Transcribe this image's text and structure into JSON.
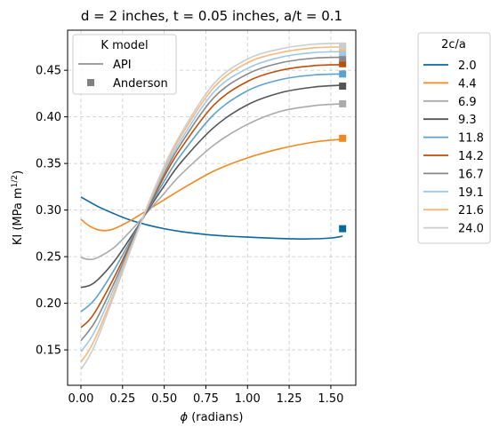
{
  "chart_data": {
    "type": "line",
    "title": "d = 2 inches, t = 0.05 inches, a/t = 0.1",
    "xlabel_symbol": "ϕ",
    "xlabel_rest": " (radians)",
    "ylabel_main": "KI (MPa m",
    "ylabel_sup": "1/2",
    "ylabel_close": ")",
    "xlim": [
      -0.08,
      1.65
    ],
    "ylim": [
      0.112,
      0.493
    ],
    "xticks": [
      0.0,
      0.25,
      0.5,
      0.75,
      1.0,
      1.25,
      1.5
    ],
    "xtick_labels": [
      "0.00",
      "0.25",
      "0.50",
      "0.75",
      "1.00",
      "1.25",
      "1.50"
    ],
    "yticks": [
      0.15,
      0.2,
      0.25,
      0.3,
      0.35,
      0.4,
      0.45
    ],
    "ytick_labels": [
      "0.15",
      "0.20",
      "0.25",
      "0.30",
      "0.35",
      "0.40",
      "0.45"
    ],
    "grid": true,
    "model_legend": {
      "title": "K model",
      "placement": "upper-left",
      "items": [
        {
          "label": "API",
          "marker": "line",
          "color": "#808080"
        },
        {
          "label": "Anderson",
          "marker": "square",
          "color": "#808080"
        }
      ]
    },
    "series_legend": {
      "title": "2c/a",
      "placement": "outside-right"
    },
    "anderson_x": 1.5708,
    "series": [
      {
        "name": "2.0",
        "color": "#0868a0",
        "x": [
          0.0,
          0.1,
          0.2,
          0.3,
          0.4,
          0.5,
          0.6,
          0.8,
          1.0,
          1.2,
          1.35,
          1.5,
          1.5708
        ],
        "y": [
          0.314,
          0.304,
          0.296,
          0.289,
          0.284,
          0.28,
          0.277,
          0.273,
          0.271,
          0.2695,
          0.269,
          0.27,
          0.272
        ],
        "anderson": 0.28
      },
      {
        "name": "4.4",
        "color": "#f08a20",
        "x": [
          0.0,
          0.05,
          0.1,
          0.15,
          0.2,
          0.3,
          0.4,
          0.5,
          0.6,
          0.8,
          1.0,
          1.2,
          1.4,
          1.5708
        ],
        "y": [
          0.29,
          0.283,
          0.279,
          0.278,
          0.28,
          0.289,
          0.3,
          0.311,
          0.322,
          0.342,
          0.356,
          0.366,
          0.373,
          0.376
        ],
        "anderson": 0.377
      },
      {
        "name": "6.9",
        "color": "#aaaaaa",
        "x": [
          0.0,
          0.05,
          0.1,
          0.2,
          0.3,
          0.4,
          0.5,
          0.6,
          0.8,
          1.0,
          1.2,
          1.4,
          1.5708
        ],
        "y": [
          0.249,
          0.247,
          0.249,
          0.26,
          0.278,
          0.298,
          0.318,
          0.338,
          0.37,
          0.392,
          0.406,
          0.412,
          0.414
        ],
        "anderson": 0.414
      },
      {
        "name": "9.3",
        "color": "#555555",
        "x": [
          0.0,
          0.05,
          0.1,
          0.2,
          0.3,
          0.4,
          0.5,
          0.6,
          0.8,
          1.0,
          1.2,
          1.4,
          1.5708
        ],
        "y": [
          0.217,
          0.219,
          0.225,
          0.245,
          0.271,
          0.299,
          0.326,
          0.351,
          0.389,
          0.413,
          0.426,
          0.432,
          0.434
        ],
        "anderson": 0.433
      },
      {
        "name": "11.8",
        "color": "#5ba2d0",
        "x": [
          0.0,
          0.05,
          0.1,
          0.2,
          0.3,
          0.4,
          0.5,
          0.6,
          0.8,
          1.0,
          1.2,
          1.4,
          1.5708
        ],
        "y": [
          0.191,
          0.198,
          0.208,
          0.236,
          0.268,
          0.3,
          0.331,
          0.359,
          0.403,
          0.428,
          0.44,
          0.445,
          0.446
        ],
        "anderson": 0.446
      },
      {
        "name": "14.2",
        "color": "#c04e08",
        "x": [
          0.0,
          0.05,
          0.1,
          0.2,
          0.3,
          0.4,
          0.5,
          0.6,
          0.8,
          1.0,
          1.2,
          1.4,
          1.5708
        ],
        "y": [
          0.174,
          0.182,
          0.195,
          0.228,
          0.265,
          0.301,
          0.336,
          0.366,
          0.413,
          0.438,
          0.45,
          0.455,
          0.456
        ],
        "anderson": 0.457
      },
      {
        "name": "16.7",
        "color": "#888888",
        "x": [
          0.0,
          0.05,
          0.1,
          0.2,
          0.3,
          0.4,
          0.5,
          0.6,
          0.8,
          1.0,
          1.2,
          1.4,
          1.5708
        ],
        "y": [
          0.16,
          0.171,
          0.185,
          0.222,
          0.263,
          0.302,
          0.339,
          0.371,
          0.421,
          0.446,
          0.458,
          0.463,
          0.464
        ],
        "anderson": 0.463
      },
      {
        "name": "19.1",
        "color": "#9dc9e6",
        "x": [
          0.0,
          0.05,
          0.1,
          0.2,
          0.3,
          0.4,
          0.5,
          0.6,
          0.8,
          1.0,
          1.2,
          1.4,
          1.5708
        ],
        "y": [
          0.148,
          0.16,
          0.176,
          0.217,
          0.261,
          0.303,
          0.342,
          0.375,
          0.427,
          0.452,
          0.464,
          0.469,
          0.47
        ],
        "anderson": 0.469
      },
      {
        "name": "21.6",
        "color": "#f8b878",
        "x": [
          0.0,
          0.05,
          0.1,
          0.2,
          0.3,
          0.4,
          0.5,
          0.6,
          0.8,
          1.0,
          1.2,
          1.4,
          1.5708
        ],
        "y": [
          0.137,
          0.15,
          0.168,
          0.212,
          0.259,
          0.304,
          0.345,
          0.379,
          0.432,
          0.458,
          0.469,
          0.474,
          0.475
        ],
        "anderson": 0.474
      },
      {
        "name": "24.0",
        "color": "#cccccc",
        "x": [
          0.0,
          0.05,
          0.1,
          0.2,
          0.3,
          0.4,
          0.5,
          0.6,
          0.8,
          1.0,
          1.2,
          1.4,
          1.5708
        ],
        "y": [
          0.129,
          0.143,
          0.162,
          0.209,
          0.258,
          0.305,
          0.347,
          0.382,
          0.436,
          0.462,
          0.473,
          0.478,
          0.479
        ],
        "anderson": 0.476
      }
    ]
  }
}
